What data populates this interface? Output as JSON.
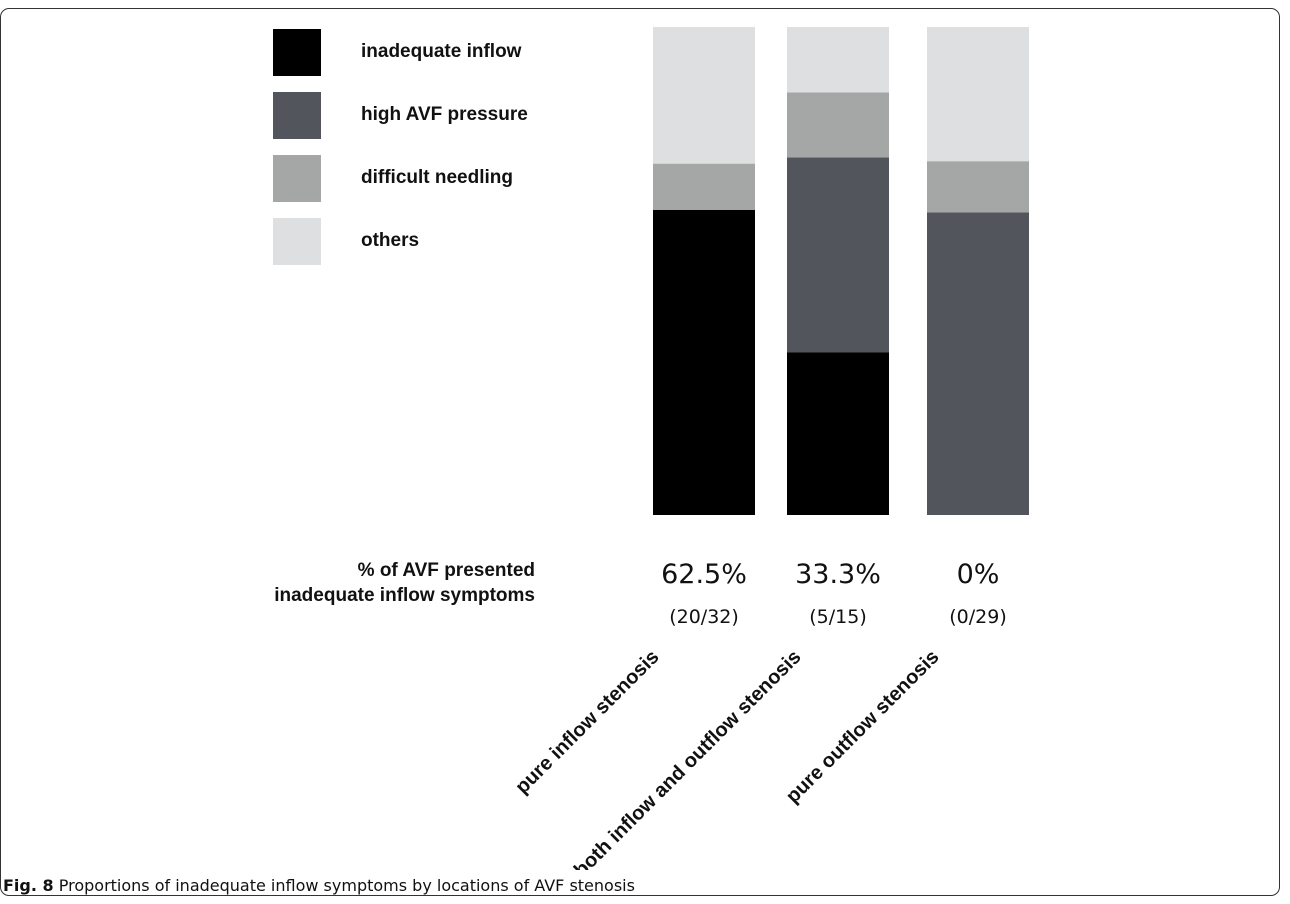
{
  "chart_data": {
    "type": "bar",
    "stacked": true,
    "categories": [
      "pure inflow stenosis",
      "both inflow and outflow stenosis",
      "pure outflow stenosis"
    ],
    "ylim": [
      0,
      100
    ],
    "series": [
      {
        "name": "inadequate inflow",
        "color": "#000000",
        "values": [
          62.5,
          33.3,
          0
        ]
      },
      {
        "name": "high AVF pressure",
        "color": "#52565c",
        "values": [
          0,
          40.0,
          62.0
        ]
      },
      {
        "name": "difficult needling",
        "color": "#a4a7a6",
        "values": [
          9.5,
          13.3,
          10.5
        ]
      },
      {
        "name": "others",
        "color": "#dedfe0",
        "values": [
          28.0,
          13.4,
          27.5
        ]
      }
    ],
    "row_label_lines": [
      "% of AVF presented",
      "inadequate inflow symptoms"
    ],
    "percent_labels": [
      "62.5%",
      "33.3%",
      "0%"
    ],
    "fraction_labels": [
      "(20/32)",
      "(5/15)",
      "(0/29)"
    ],
    "legend_position": "top-left"
  },
  "caption": {
    "label": "Fig. 8",
    "text": " Proportions of inadequate inflow symptoms by locations of AVF stenosis"
  }
}
